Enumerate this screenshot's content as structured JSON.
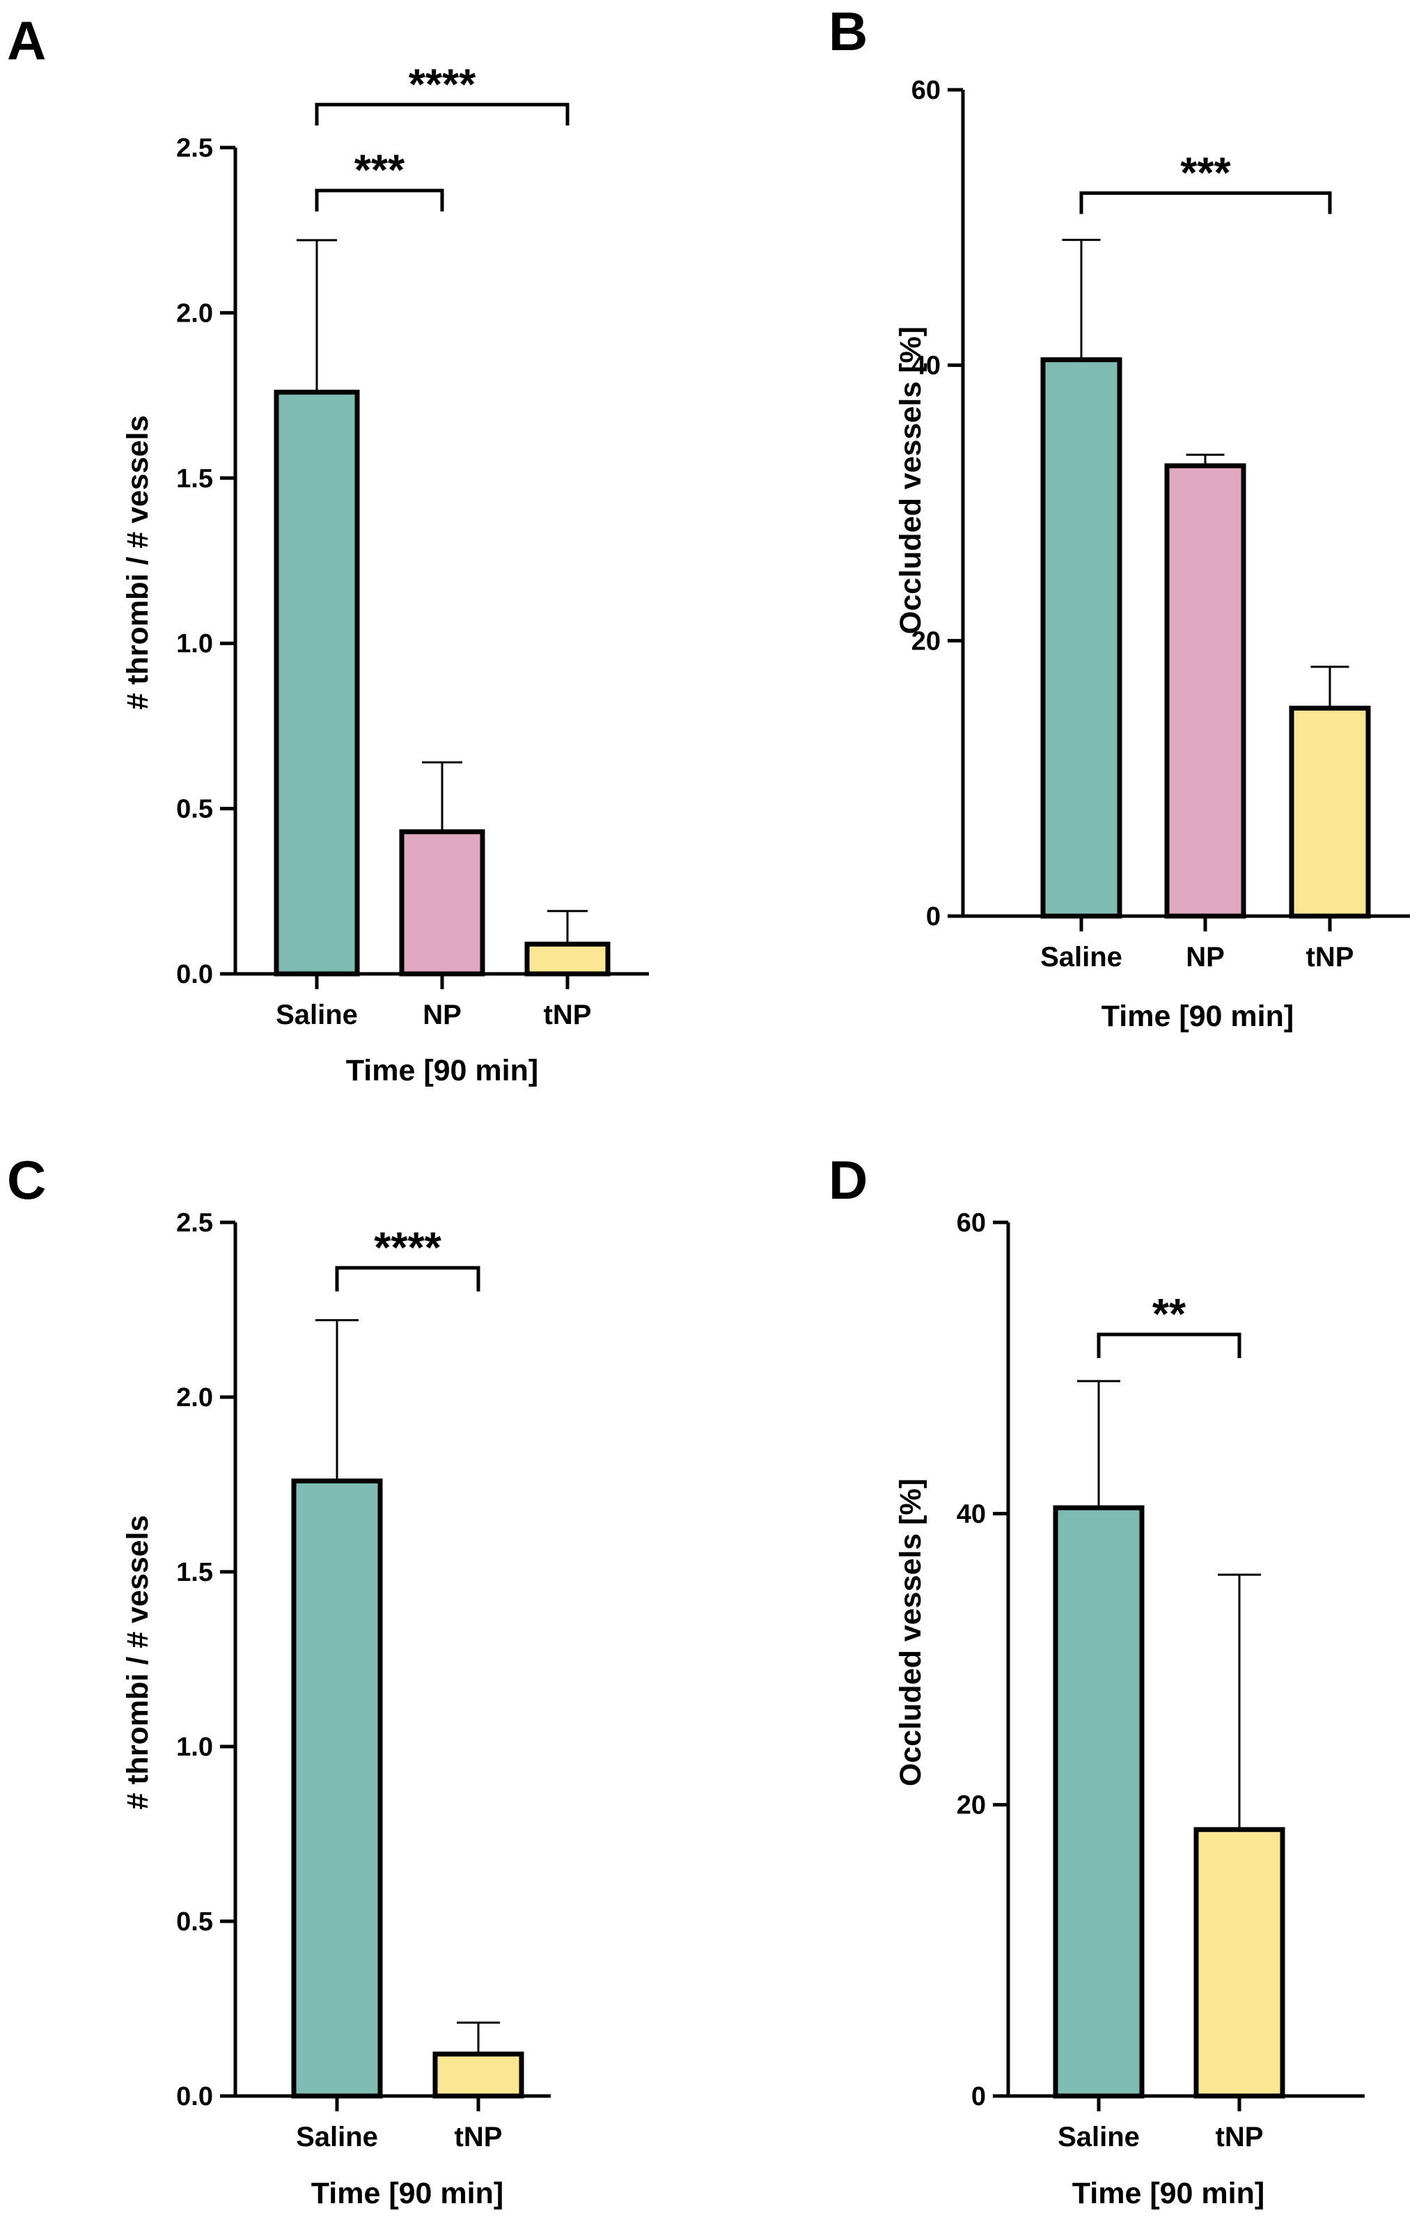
{
  "colors": {
    "Saline": "#7fbcb3",
    "NP": "#e0a9c1",
    "tNP": "#fbe793",
    "outline": "#000000"
  },
  "chart_data": [
    {
      "type": "bar",
      "panel": "A",
      "categories": [
        "Saline",
        "NP",
        "tNP"
      ],
      "values": [
        1.76,
        0.43,
        0.09
      ],
      "errors_upper": [
        2.22,
        0.64,
        0.19
      ],
      "xlabel": "Time [90 min]",
      "ylabel": "# thrombi / # vessels",
      "ylim": [
        0,
        2.5
      ],
      "yticks": [
        0.0,
        0.5,
        1.0,
        1.5,
        2.0,
        2.5
      ],
      "ytick_labels": [
        "0.0",
        "0.5",
        "1.0",
        "1.5",
        "2.0",
        "2.5"
      ],
      "significance": [
        {
          "from": "Saline",
          "to": "NP",
          "label": "***",
          "level": 2.37
        },
        {
          "from": "Saline",
          "to": "tNP",
          "label": "****",
          "level": 2.63
        }
      ]
    },
    {
      "type": "bar",
      "panel": "B",
      "categories": [
        "Saline",
        "NP",
        "tNP"
      ],
      "values": [
        40.4,
        32.7,
        15.1
      ],
      "errors_upper": [
        49.1,
        33.5,
        18.1
      ],
      "xlabel": "Time [90 min]",
      "ylabel": "Occluded vessels [%]",
      "ylim": [
        0,
        60
      ],
      "yticks": [
        0,
        20,
        40,
        60
      ],
      "ytick_labels": [
        "0",
        "20",
        "40",
        "60"
      ],
      "significance": [
        {
          "from": "Saline",
          "to": "tNP",
          "label": "***",
          "level": 52.5
        }
      ]
    },
    {
      "type": "bar",
      "panel": "C",
      "categories": [
        "Saline",
        "tNP"
      ],
      "values": [
        1.76,
        0.12
      ],
      "errors_upper": [
        2.22,
        0.21
      ],
      "xlabel": "Time [90 min]",
      "ylabel": "# thrombi / # vessels",
      "ylim": [
        0,
        2.5
      ],
      "yticks": [
        0.0,
        0.5,
        1.0,
        1.5,
        2.0,
        2.5
      ],
      "ytick_labels": [
        "0.0",
        "0.5",
        "1.0",
        "1.5",
        "2.0",
        "2.5"
      ],
      "significance": [
        {
          "from": "Saline",
          "to": "tNP",
          "label": "****",
          "level": 2.37
        }
      ]
    },
    {
      "type": "bar",
      "panel": "D",
      "categories": [
        "Saline",
        "tNP"
      ],
      "values": [
        40.4,
        18.3
      ],
      "errors_upper": [
        49.1,
        35.8
      ],
      "xlabel": "Time [90 min]",
      "ylabel": "Occluded vessels [%]",
      "ylim": [
        0,
        60
      ],
      "yticks": [
        0,
        20,
        40,
        60
      ],
      "ytick_labels": [
        "0",
        "20",
        "40",
        "60"
      ],
      "significance": [
        {
          "from": "Saline",
          "to": "tNP",
          "label": "**",
          "level": 52.3
        }
      ]
    }
  ]
}
